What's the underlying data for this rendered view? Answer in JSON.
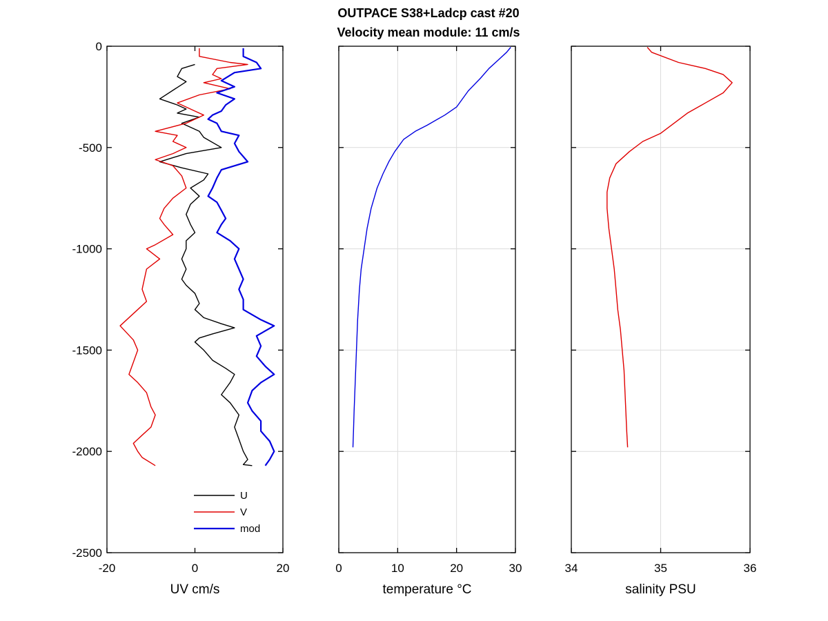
{
  "title": {
    "line1": "OUTPACE S38+Ladcp cast #20",
    "line2": "Velocity mean module:  11 cm/s"
  },
  "chart_data": [
    {
      "type": "line",
      "xlabel": "UV cm/s",
      "ylabel": "",
      "xlim": [
        -20,
        20
      ],
      "ylim": [
        -2500,
        0
      ],
      "xticks": [
        "-20",
        "0",
        "20"
      ],
      "yticks": [
        "0",
        "-500",
        "-1000",
        "-1500",
        "-2000",
        "-2500"
      ],
      "grid": false,
      "legend": {
        "position": "bottom-right",
        "entries": [
          "U",
          "V",
          "mod"
        ]
      },
      "series": [
        {
          "name": "U",
          "color": "#000000",
          "points": [
            [
              0,
              -90
            ],
            [
              -3,
              -110
            ],
            [
              -4,
              -150
            ],
            [
              -2,
              -175
            ],
            [
              -8,
              -260
            ],
            [
              -4,
              -290
            ],
            [
              -2,
              -310
            ],
            [
              -4,
              -330
            ],
            [
              1,
              -350
            ],
            [
              -3,
              -380
            ],
            [
              1,
              -420
            ],
            [
              2,
              -450
            ],
            [
              6,
              -500
            ],
            [
              -2,
              -530
            ],
            [
              -8,
              -570
            ],
            [
              -3,
              -600
            ],
            [
              3,
              -630
            ],
            [
              2,
              -660
            ],
            [
              -1,
              -700
            ],
            [
              1,
              -740
            ],
            [
              -1,
              -780
            ],
            [
              -2,
              -830
            ],
            [
              -1,
              -880
            ],
            [
              0,
              -920
            ],
            [
              -2,
              -960
            ],
            [
              -2,
              -1000
            ],
            [
              -3,
              -1050
            ],
            [
              -2,
              -1100
            ],
            [
              -3,
              -1150
            ],
            [
              -2,
              -1180
            ],
            [
              0,
              -1220
            ],
            [
              1,
              -1270
            ],
            [
              0,
              -1300
            ],
            [
              2,
              -1340
            ],
            [
              6,
              -1370
            ],
            [
              9,
              -1390
            ],
            [
              4,
              -1420
            ],
            [
              1,
              -1440
            ],
            [
              0,
              -1460
            ],
            [
              2,
              -1500
            ],
            [
              4,
              -1550
            ],
            [
              7,
              -1590
            ],
            [
              9,
              -1620
            ],
            [
              8,
              -1660
            ],
            [
              6,
              -1720
            ],
            [
              8,
              -1760
            ],
            [
              10,
              -1820
            ],
            [
              9,
              -1880
            ],
            [
              10,
              -1940
            ],
            [
              11,
              -2000
            ],
            [
              12,
              -2040
            ],
            [
              11,
              -2065
            ],
            [
              13,
              -2070
            ]
          ]
        },
        {
          "name": "V",
          "color": "#e00000",
          "points": [
            [
              1,
              -10
            ],
            [
              1,
              -50
            ],
            [
              8,
              -80
            ],
            [
              12,
              -90
            ],
            [
              5,
              -110
            ],
            [
              4,
              -140
            ],
            [
              6,
              -160
            ],
            [
              2,
              -180
            ],
            [
              8,
              -210
            ],
            [
              1,
              -240
            ],
            [
              -4,
              -280
            ],
            [
              -2,
              -300
            ],
            [
              0,
              -320
            ],
            [
              2,
              -340
            ],
            [
              0,
              -360
            ],
            [
              -2,
              -380
            ],
            [
              -9,
              -420
            ],
            [
              -4,
              -440
            ],
            [
              -5,
              -470
            ],
            [
              -2,
              -500
            ],
            [
              -5,
              -530
            ],
            [
              -9,
              -560
            ],
            [
              -5,
              -590
            ],
            [
              -3,
              -640
            ],
            [
              -2,
              -700
            ],
            [
              -5,
              -750
            ],
            [
              -7,
              -800
            ],
            [
              -8,
              -850
            ],
            [
              -7,
              -880
            ],
            [
              -5,
              -930
            ],
            [
              -9,
              -980
            ],
            [
              -11,
              -1000
            ],
            [
              -8,
              -1050
            ],
            [
              -11,
              -1100
            ],
            [
              -12,
              -1200
            ],
            [
              -11,
              -1260
            ],
            [
              -13,
              -1300
            ],
            [
              -17,
              -1380
            ],
            [
              -14,
              -1450
            ],
            [
              -13,
              -1500
            ],
            [
              -14,
              -1560
            ],
            [
              -15,
              -1620
            ],
            [
              -13,
              -1660
            ],
            [
              -11,
              -1710
            ],
            [
              -10,
              -1780
            ],
            [
              -9,
              -1820
            ],
            [
              -10,
              -1880
            ],
            [
              -12,
              -1920
            ],
            [
              -14,
              -1960
            ],
            [
              -13,
              -2000
            ],
            [
              -12,
              -2030
            ],
            [
              -9,
              -2070
            ]
          ]
        },
        {
          "name": "mod",
          "color": "#0000e0",
          "points": [
            [
              11,
              -10
            ],
            [
              11,
              -50
            ],
            [
              14,
              -80
            ],
            [
              15,
              -110
            ],
            [
              9,
              -130
            ],
            [
              6,
              -170
            ],
            [
              9,
              -200
            ],
            [
              5,
              -230
            ],
            [
              9,
              -260
            ],
            [
              7,
              -290
            ],
            [
              6,
              -320
            ],
            [
              4,
              -340
            ],
            [
              3,
              -360
            ],
            [
              5,
              -380
            ],
            [
              6,
              -420
            ],
            [
              10,
              -440
            ],
            [
              9,
              -480
            ],
            [
              10,
              -520
            ],
            [
              12,
              -570
            ],
            [
              6,
              -610
            ],
            [
              5,
              -650
            ],
            [
              4,
              -700
            ],
            [
              3,
              -740
            ],
            [
              5,
              -770
            ],
            [
              6,
              -810
            ],
            [
              7,
              -850
            ],
            [
              6,
              -880
            ],
            [
              5,
              -920
            ],
            [
              8,
              -960
            ],
            [
              10,
              -1000
            ],
            [
              9,
              -1050
            ],
            [
              10,
              -1100
            ],
            [
              11,
              -1150
            ],
            [
              10,
              -1200
            ],
            [
              11,
              -1250
            ],
            [
              11,
              -1300
            ],
            [
              15,
              -1350
            ],
            [
              18,
              -1380
            ],
            [
              14,
              -1430
            ],
            [
              15,
              -1480
            ],
            [
              14,
              -1530
            ],
            [
              16,
              -1580
            ],
            [
              18,
              -1620
            ],
            [
              15,
              -1660
            ],
            [
              13,
              -1700
            ],
            [
              12,
              -1760
            ],
            [
              13,
              -1800
            ],
            [
              15,
              -1850
            ],
            [
              15,
              -1900
            ],
            [
              17,
              -1950
            ],
            [
              18,
              -2000
            ],
            [
              17,
              -2040
            ],
            [
              16,
              -2070
            ]
          ]
        }
      ]
    },
    {
      "type": "line",
      "xlabel": "temperature °C",
      "ylabel": "",
      "xlim": [
        0,
        30
      ],
      "ylim": [
        -2500,
        0
      ],
      "xticks": [
        "0",
        "10",
        "20",
        "30"
      ],
      "grid": true,
      "series": [
        {
          "name": "",
          "color": "#0000e0",
          "points": [
            [
              29.2,
              -5
            ],
            [
              28.5,
              -30
            ],
            [
              27,
              -70
            ],
            [
              25.5,
              -110
            ],
            [
              24,
              -160
            ],
            [
              22,
              -220
            ],
            [
              20,
              -300
            ],
            [
              18,
              -340
            ],
            [
              15,
              -390
            ],
            [
              13,
              -420
            ],
            [
              11,
              -460
            ],
            [
              9.5,
              -520
            ],
            [
              8.5,
              -570
            ],
            [
              7.5,
              -630
            ],
            [
              6.5,
              -700
            ],
            [
              5.5,
              -800
            ],
            [
              4.8,
              -900
            ],
            [
              4.3,
              -1000
            ],
            [
              3.8,
              -1100
            ],
            [
              3.5,
              -1200
            ],
            [
              3.2,
              -1350
            ],
            [
              3,
              -1500
            ],
            [
              2.8,
              -1650
            ],
            [
              2.6,
              -1800
            ],
            [
              2.5,
              -1900
            ],
            [
              2.4,
              -1980
            ]
          ]
        }
      ]
    },
    {
      "type": "line",
      "xlabel": "salinity PSU",
      "ylabel": "",
      "xlim": [
        34,
        36
      ],
      "ylim": [
        -2500,
        0
      ],
      "xticks": [
        "34",
        "35",
        "36"
      ],
      "grid": true,
      "series": [
        {
          "name": "",
          "color": "#e00000",
          "points": [
            [
              34.85,
              -5
            ],
            [
              34.9,
              -30
            ],
            [
              35.2,
              -80
            ],
            [
              35.5,
              -110
            ],
            [
              35.7,
              -140
            ],
            [
              35.8,
              -180
            ],
            [
              35.7,
              -230
            ],
            [
              35.5,
              -280
            ],
            [
              35.3,
              -330
            ],
            [
              35.15,
              -380
            ],
            [
              35.0,
              -430
            ],
            [
              34.8,
              -470
            ],
            [
              34.65,
              -520
            ],
            [
              34.5,
              -580
            ],
            [
              34.43,
              -650
            ],
            [
              34.4,
              -720
            ],
            [
              34.4,
              -800
            ],
            [
              34.42,
              -900
            ],
            [
              34.45,
              -1000
            ],
            [
              34.48,
              -1100
            ],
            [
              34.5,
              -1200
            ],
            [
              34.52,
              -1300
            ],
            [
              34.55,
              -1400
            ],
            [
              34.57,
              -1500
            ],
            [
              34.59,
              -1600
            ],
            [
              34.6,
              -1700
            ],
            [
              34.61,
              -1800
            ],
            [
              34.62,
              -1900
            ],
            [
              34.63,
              -1980
            ]
          ]
        }
      ]
    }
  ]
}
